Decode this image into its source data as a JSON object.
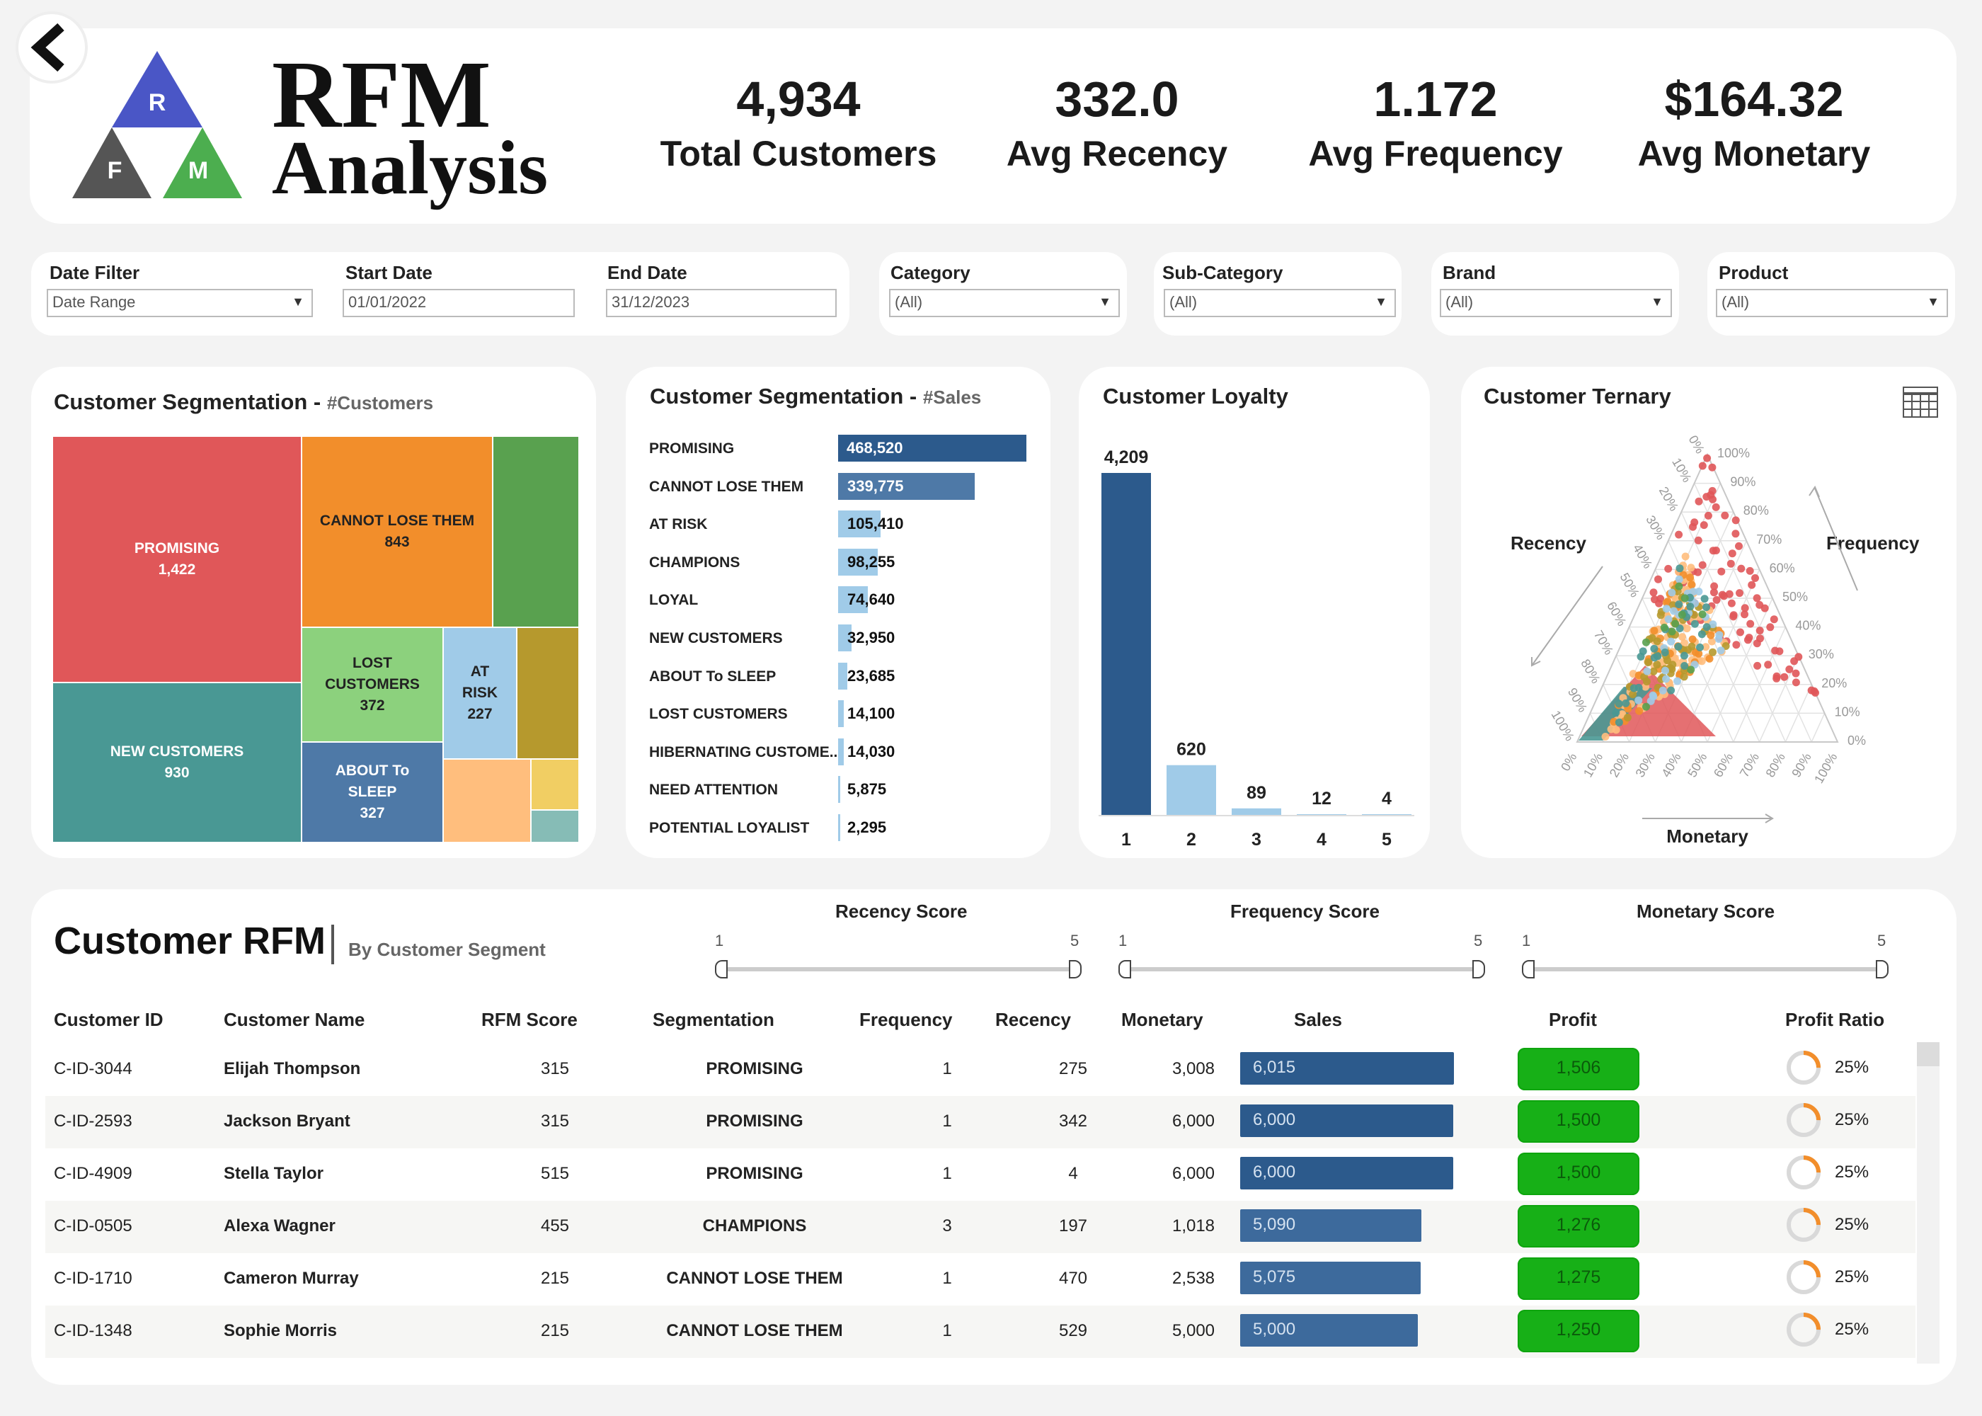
{
  "header": {
    "logo_line1": "RFM",
    "logo_line2": "Analysis",
    "logo_letters": {
      "r": "R",
      "f": "F",
      "m": "M"
    },
    "kpis": [
      {
        "value": "4,934",
        "label": "Total Customers"
      },
      {
        "value": "332.0",
        "label": "Avg Recency"
      },
      {
        "value": "1.172",
        "label": "Avg Frequency"
      },
      {
        "value": "$164.32",
        "label": "Avg Monetary"
      }
    ]
  },
  "filters": {
    "date_filter": {
      "label": "Date Filter",
      "value": "Date Range"
    },
    "start_date": {
      "label": "Start Date",
      "value": "01/01/2022"
    },
    "end_date": {
      "label": "End Date",
      "value": "31/12/2023"
    },
    "category": {
      "label": "Category",
      "value": "(All)"
    },
    "sub_category": {
      "label": "Sub-Category",
      "value": "(All)"
    },
    "brand": {
      "label": "Brand",
      "value": "(All)"
    },
    "product": {
      "label": "Product",
      "value": "(All)"
    }
  },
  "treemap": {
    "title": "Customer Segmentation - ",
    "subtitle": "#Customers",
    "cells": [
      {
        "label": "PROMISING",
        "value": "1,422",
        "color": "#e05759"
      },
      {
        "label": "CANNOT LOSE THEM",
        "value": "843",
        "color": "#f28e2b"
      },
      {
        "label": "NEW CUSTOMERS",
        "value": "930",
        "color": "#499894"
      },
      {
        "label": "LOST CUSTOMERS",
        "value": "372",
        "color": "#8cd17d"
      },
      {
        "label": "AT RISK",
        "value": "227",
        "color": "#a0cbe8"
      },
      {
        "label": "ABOUT To SLEEP",
        "value": "327",
        "color": "#4e79a7"
      }
    ],
    "unlabeled_colors": [
      "#59a14f",
      "#b6992d",
      "#ffbe7d",
      "#f1ce63",
      "#86bcb6"
    ]
  },
  "chart_data": [
    {
      "type": "bar",
      "title": "Customer Segmentation - #Sales",
      "orientation": "horizontal",
      "categories": [
        "PROMISING",
        "CANNOT LOSE THEM",
        "AT RISK",
        "CHAMPIONS",
        "LOYAL",
        "NEW CUSTOMERS",
        "ABOUT To SLEEP",
        "LOST CUSTOMERS",
        "HIBERNATING CUSTOME..",
        "NEED ATTENTION",
        "POTENTIAL LOYALIST"
      ],
      "values": [
        468520,
        339775,
        105410,
        98255,
        74640,
        32950,
        23685,
        14100,
        14030,
        5875,
        2295
      ],
      "labels": [
        "468,520",
        "339,775",
        "105,410",
        "98,255",
        "74,640",
        "32,950",
        "23,685",
        "14,100",
        "14,030",
        "5,875",
        "2,295"
      ],
      "colors": [
        "#2c5a8c",
        "#4e79a7",
        "#a0cbe8",
        "#a0cbe8",
        "#a0cbe8",
        "#a0cbe8",
        "#a0cbe8",
        "#a0cbe8",
        "#a0cbe8",
        "#a0cbe8",
        "#a0cbe8"
      ]
    },
    {
      "type": "bar",
      "title": "Customer Loyalty",
      "categories": [
        "1",
        "2",
        "3",
        "4",
        "5"
      ],
      "values": [
        4209,
        620,
        89,
        12,
        4
      ],
      "labels": [
        "4,209",
        "620",
        "89",
        "12",
        "4"
      ],
      "colors": [
        "#2c5a8c",
        "#a0cbe8",
        "#a0cbe8",
        "#a0cbe8",
        "#a0cbe8"
      ]
    },
    {
      "type": "scatter",
      "title": "Customer Ternary",
      "axes": [
        "Recency",
        "Frequency",
        "Monetary"
      ],
      "ticks": [
        "0%",
        "10%",
        "20%",
        "30%",
        "40%",
        "50%",
        "60%",
        "70%",
        "80%",
        "90%",
        "100%"
      ]
    }
  ],
  "rfm": {
    "title": "Customer RFM",
    "subtitle": "By Customer Segment",
    "sliders": [
      {
        "label": "Recency Score",
        "min": "1",
        "max": "5"
      },
      {
        "label": "Frequency Score",
        "min": "1",
        "max": "5"
      },
      {
        "label": "Monetary Score",
        "min": "1",
        "max": "5"
      }
    ],
    "columns": [
      "Customer ID",
      "Customer Name",
      "RFM Score",
      "Segmentation",
      "Frequency",
      "Recency",
      "Monetary",
      "Sales",
      "Profit",
      "Profit Ratio"
    ],
    "rows": [
      {
        "id": "C-ID-3044",
        "name": "Elijah Thompson",
        "score": "315",
        "seg": "PROMISING",
        "freq": "1",
        "rec": "275",
        "mon": "3,008",
        "sales": "6,015",
        "sales_num": 6015,
        "profit": "1,506",
        "ratio": "25%"
      },
      {
        "id": "C-ID-2593",
        "name": "Jackson Bryant",
        "score": "315",
        "seg": "PROMISING",
        "freq": "1",
        "rec": "342",
        "mon": "6,000",
        "sales": "6,000",
        "sales_num": 6000,
        "profit": "1,500",
        "ratio": "25%"
      },
      {
        "id": "C-ID-4909",
        "name": "Stella Taylor",
        "score": "515",
        "seg": "PROMISING",
        "freq": "1",
        "rec": "4",
        "mon": "6,000",
        "sales": "6,000",
        "sales_num": 6000,
        "profit": "1,500",
        "ratio": "25%"
      },
      {
        "id": "C-ID-0505",
        "name": "Alexa Wagner",
        "score": "455",
        "seg": "CHAMPIONS",
        "freq": "3",
        "rec": "197",
        "mon": "1,018",
        "sales": "5,090",
        "sales_num": 5090,
        "profit": "1,276",
        "ratio": "25%"
      },
      {
        "id": "C-ID-1710",
        "name": "Cameron Murray",
        "score": "215",
        "seg": "CANNOT LOSE THEM",
        "freq": "1",
        "rec": "470",
        "mon": "2,538",
        "sales": "5,075",
        "sales_num": 5075,
        "profit": "1,275",
        "ratio": "25%"
      },
      {
        "id": "C-ID-1348",
        "name": "Sophie Morris",
        "score": "215",
        "seg": "CANNOT LOSE THEM",
        "freq": "1",
        "rec": "529",
        "mon": "5,000",
        "sales": "5,000",
        "sales_num": 5000,
        "profit": "1,250",
        "ratio": "25%"
      }
    ]
  }
}
